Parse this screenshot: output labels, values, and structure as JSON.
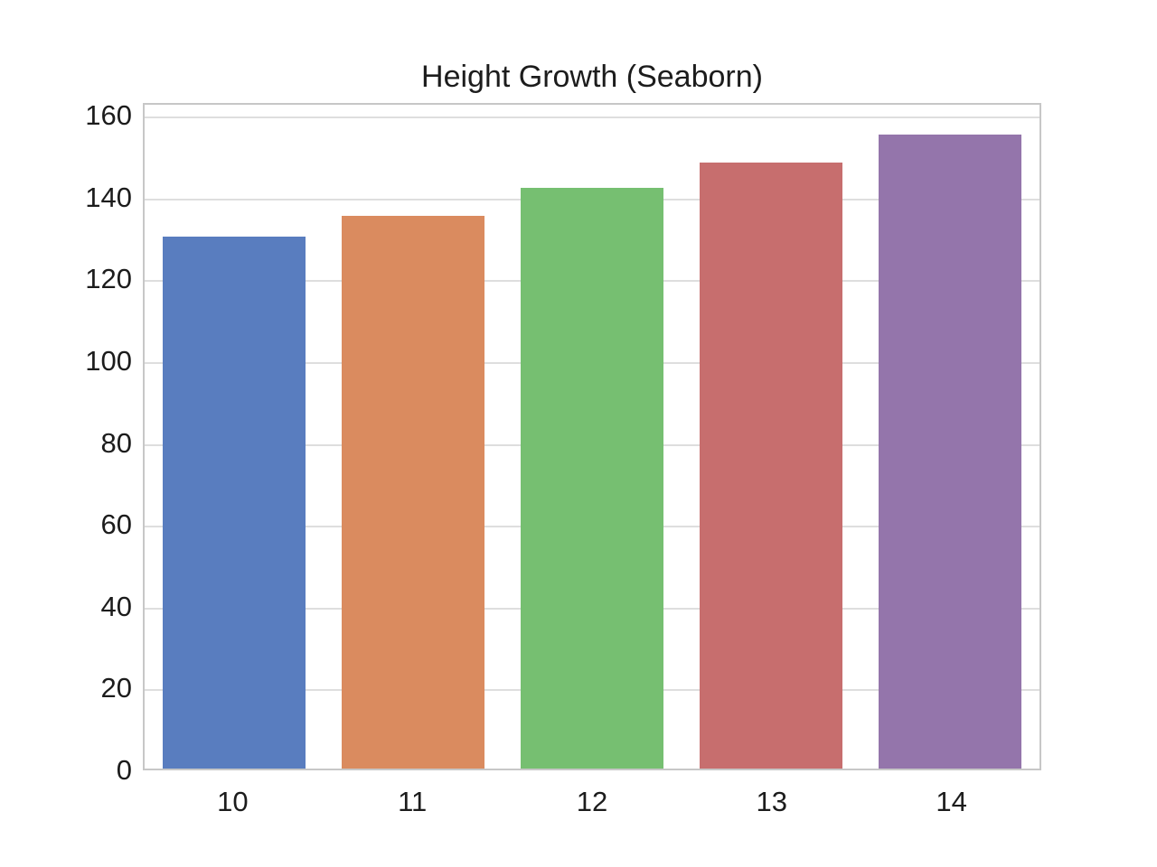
{
  "figure": {
    "background": "#ffffff",
    "text_color": "#1c1c1c"
  },
  "chart_data": {
    "type": "bar",
    "title": "Height Growth (Seaborn)",
    "categories": [
      "10",
      "11",
      "12",
      "13",
      "14"
    ],
    "values": [
      130,
      135,
      142,
      148,
      155
    ],
    "bar_colors": [
      "#597dbf",
      "#da8b5f",
      "#76bf71",
      "#c76e6e",
      "#9475ab"
    ],
    "xlabel": "",
    "ylabel": "",
    "ylim": [
      0,
      163.1
    ],
    "yticks": [
      0,
      20,
      40,
      60,
      80,
      100,
      120,
      140,
      160
    ],
    "grid": "horizontal",
    "grid_color": "#dedede",
    "spine_color": "#c7c7c7",
    "legend": "none",
    "style": "seaborn-whitegrid"
  }
}
